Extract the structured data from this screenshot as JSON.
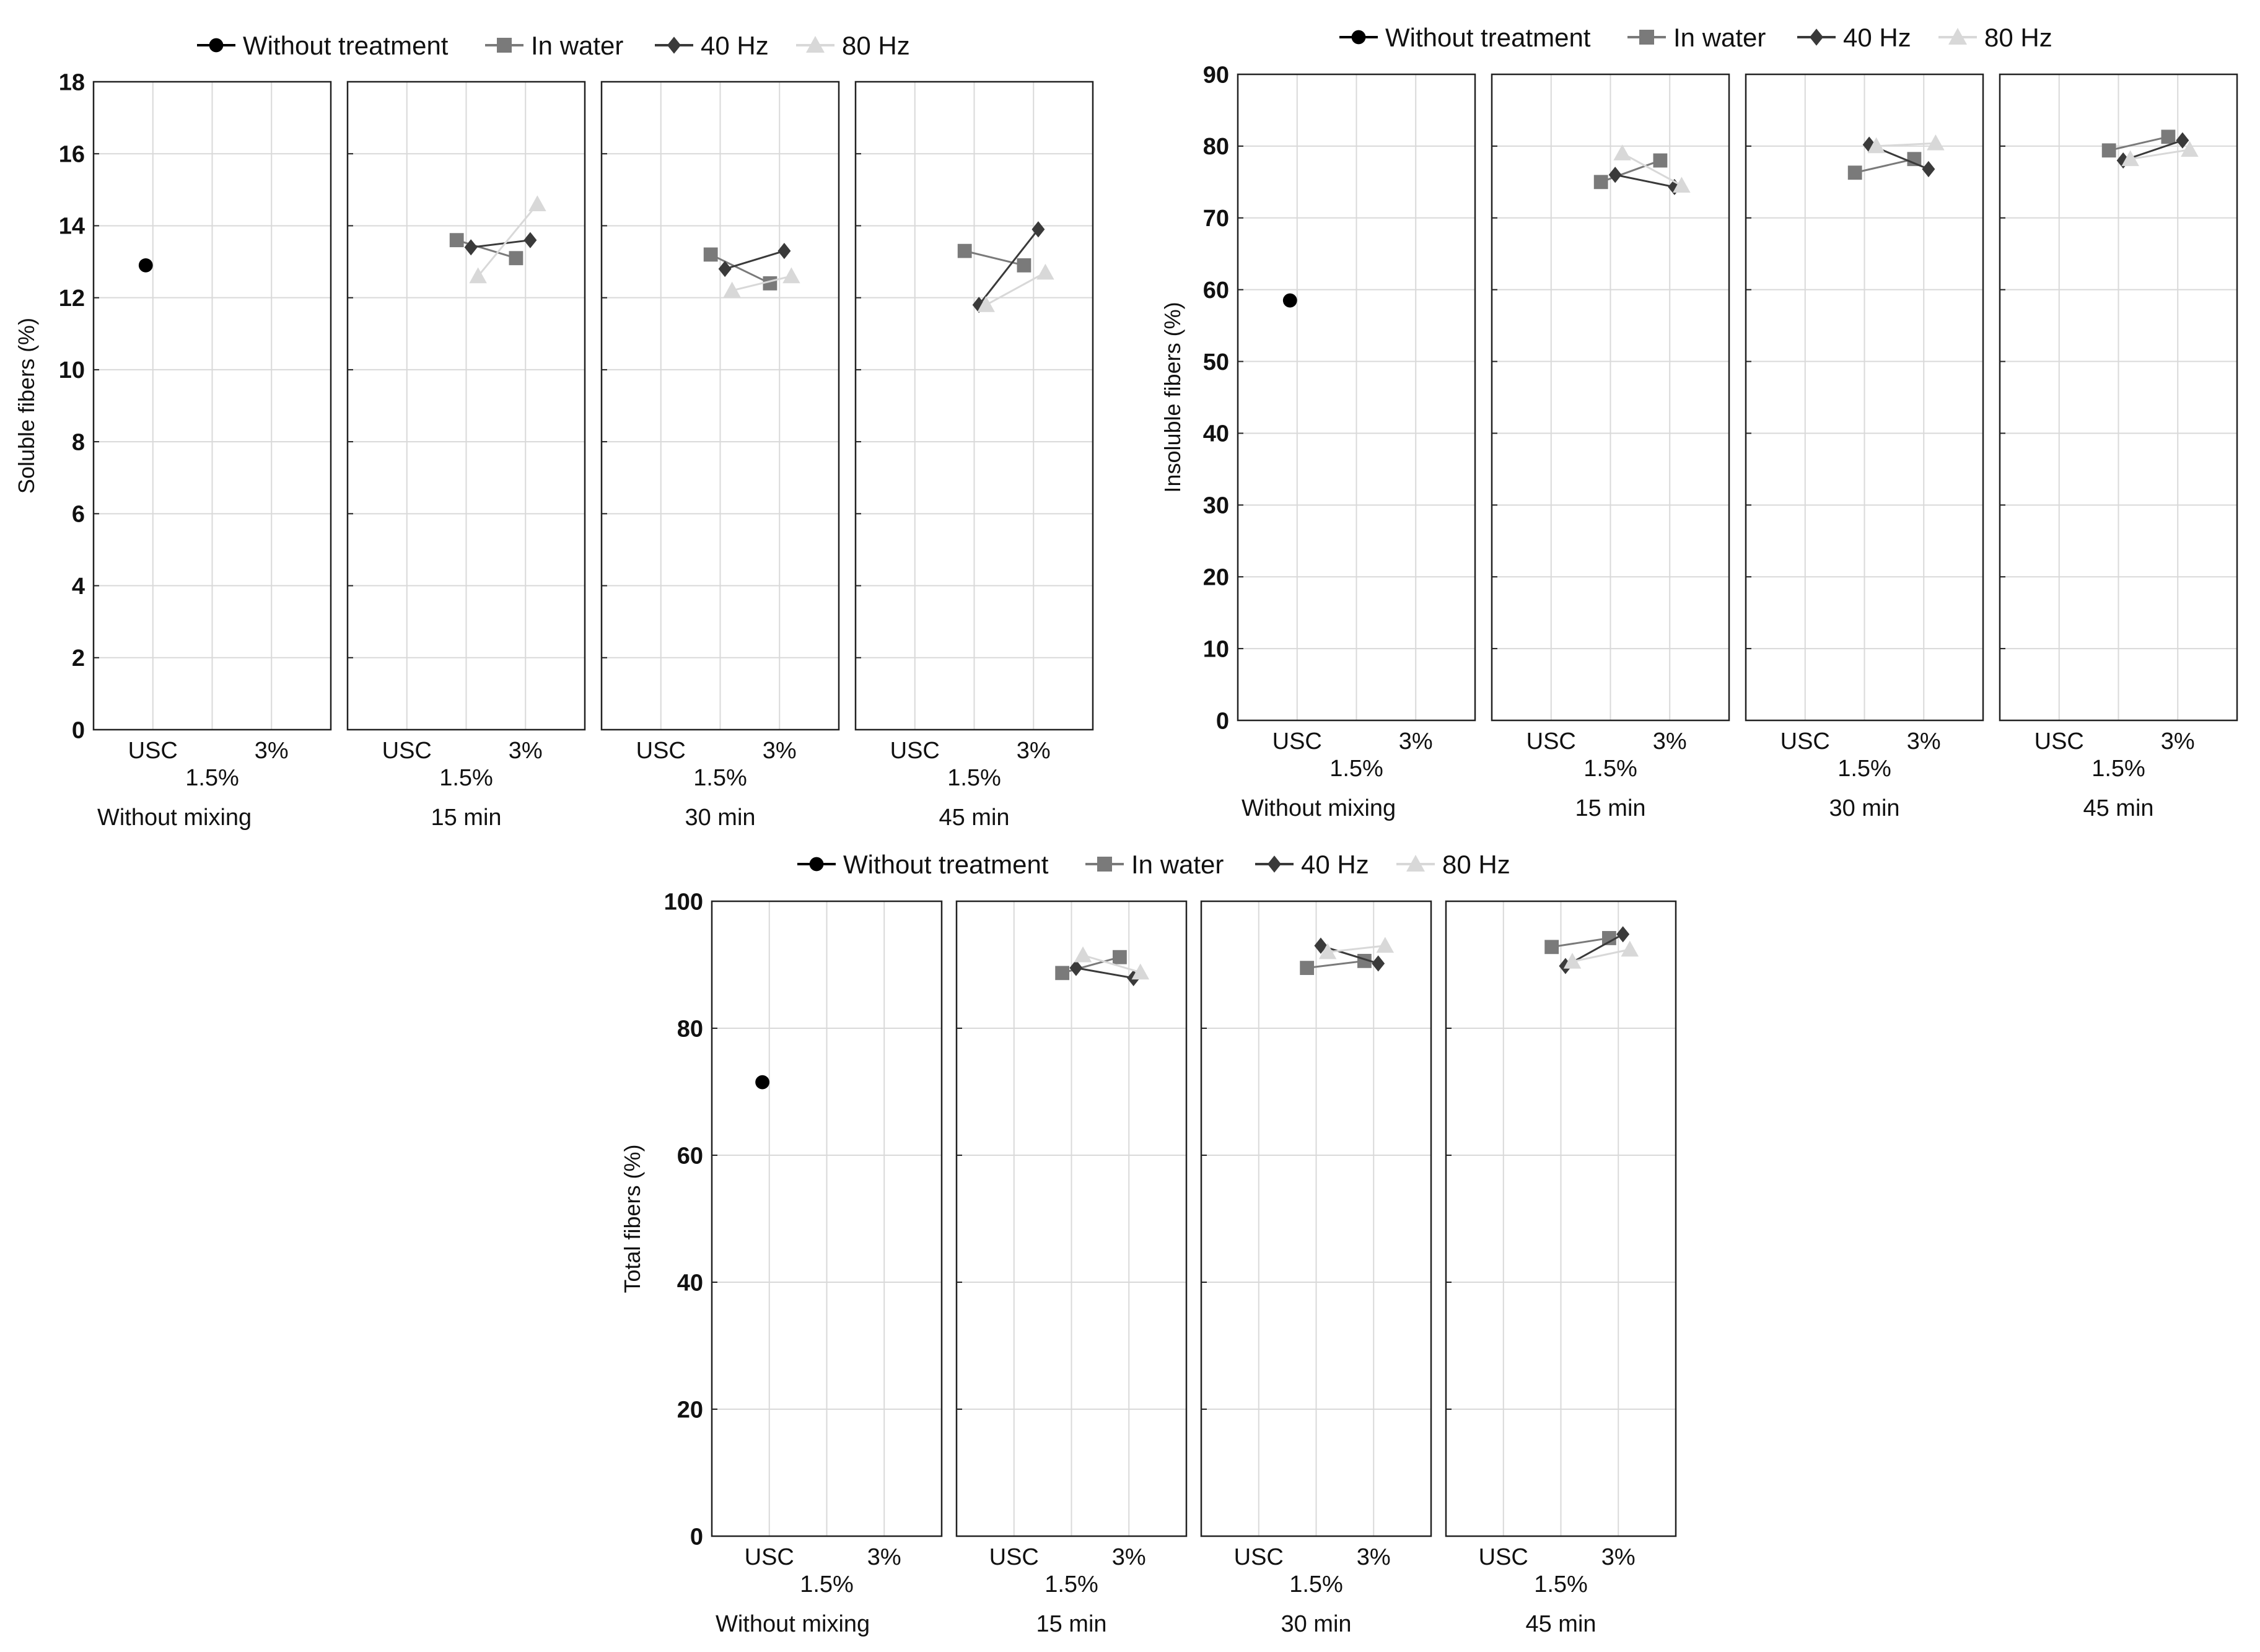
{
  "colors": {
    "without_treatment": "#000000",
    "in_water": "#7a7a7a",
    "hz40": "#3a3a3a",
    "hz80": "#d8d8d8",
    "grid": "#d9d9d9",
    "frame": "#222222"
  },
  "legend": [
    {
      "name": "Without treatment",
      "marker": "circle",
      "color": "#000000"
    },
    {
      "name": "In water",
      "marker": "square",
      "color": "#7a7a7a"
    },
    {
      "name": "40 Hz",
      "marker": "diamond",
      "color": "#3a3a3a"
    },
    {
      "name": "80 Hz",
      "marker": "triangle",
      "color": "#d8d8d8"
    }
  ],
  "chart_data": [
    {
      "type": "line",
      "id": "soluble",
      "ylabel": "Soluble fibers (%)",
      "ylim": [
        0,
        18
      ],
      "yticks": [
        0,
        2,
        4,
        6,
        8,
        10,
        12,
        14,
        16,
        18
      ],
      "x_positions": [
        "USC",
        "1.5%",
        "3%"
      ],
      "panels": [
        {
          "label": "Without mixing",
          "without_treatment": {
            "x": "USC",
            "y": 12.9
          }
        },
        {
          "label": "15 min",
          "series": [
            {
              "name": "In water",
              "values": [
                13.6,
                13.1
              ]
            },
            {
              "name": "40 Hz",
              "values": [
                13.4,
                13.6
              ]
            },
            {
              "name": "80 Hz",
              "values": [
                12.6,
                14.6
              ]
            }
          ]
        },
        {
          "label": "30 min",
          "series": [
            {
              "name": "In water",
              "values": [
                13.2,
                12.4
              ]
            },
            {
              "name": "40 Hz",
              "values": [
                12.8,
                13.3
              ]
            },
            {
              "name": "80 Hz",
              "values": [
                12.2,
                12.6
              ]
            }
          ]
        },
        {
          "label": "45 min",
          "series": [
            {
              "name": "In water",
              "values": [
                13.3,
                12.9
              ]
            },
            {
              "name": "40 Hz",
              "values": [
                11.8,
                13.9
              ]
            },
            {
              "name": "80 Hz",
              "values": [
                11.8,
                12.7
              ]
            }
          ]
        }
      ]
    },
    {
      "type": "line",
      "id": "insoluble",
      "ylabel": "Insoluble fibers (%)",
      "ylim": [
        0,
        90
      ],
      "yticks": [
        0,
        10,
        20,
        30,
        40,
        50,
        60,
        70,
        80,
        90
      ],
      "x_positions": [
        "USC",
        "1.5%",
        "3%"
      ],
      "panels": [
        {
          "label": "Without mixing",
          "without_treatment": {
            "x": "USC",
            "y": 58.5
          }
        },
        {
          "label": "15 min",
          "series": [
            {
              "name": "In water",
              "values": [
                75.0,
                78.0
              ]
            },
            {
              "name": "40 Hz",
              "values": [
                76.0,
                74.3
              ]
            },
            {
              "name": "80 Hz",
              "values": [
                79.0,
                74.5
              ]
            }
          ]
        },
        {
          "label": "30 min",
          "series": [
            {
              "name": "In water",
              "values": [
                76.3,
                78.2
              ]
            },
            {
              "name": "40 Hz",
              "values": [
                80.2,
                76.8
              ]
            },
            {
              "name": "80 Hz",
              "values": [
                80.0,
                80.4
              ]
            }
          ]
        },
        {
          "label": "45 min",
          "series": [
            {
              "name": "In water",
              "values": [
                79.4,
                81.3
              ]
            },
            {
              "name": "40 Hz",
              "values": [
                78.0,
                80.8
              ]
            },
            {
              "name": "80 Hz",
              "values": [
                78.2,
                79.5
              ]
            }
          ]
        }
      ]
    },
    {
      "type": "line",
      "id": "total",
      "ylabel": "Total fibers (%)",
      "ylim": [
        0,
        100
      ],
      "yticks": [
        0,
        20,
        40,
        60,
        80,
        100
      ],
      "x_positions": [
        "USC",
        "1.5%",
        "3%"
      ],
      "panels": [
        {
          "label": "Without mixing",
          "without_treatment": {
            "x": "USC",
            "y": 71.5
          }
        },
        {
          "label": "15 min",
          "series": [
            {
              "name": "In water",
              "values": [
                88.7,
                91.2
              ]
            },
            {
              "name": "40 Hz",
              "values": [
                89.5,
                87.9
              ]
            },
            {
              "name": "80 Hz",
              "values": [
                91.5,
                88.8
              ]
            }
          ]
        },
        {
          "label": "30 min",
          "series": [
            {
              "name": "In water",
              "values": [
                89.5,
                90.6
              ]
            },
            {
              "name": "40 Hz",
              "values": [
                93.0,
                90.2
              ]
            },
            {
              "name": "80 Hz",
              "values": [
                92.0,
                93.0
              ]
            }
          ]
        },
        {
          "label": "45 min",
          "series": [
            {
              "name": "In water",
              "values": [
                92.8,
                94.2
              ]
            },
            {
              "name": "40 Hz",
              "values": [
                89.8,
                94.8
              ]
            },
            {
              "name": "80 Hz",
              "values": [
                90.5,
                92.4
              ]
            }
          ]
        }
      ]
    }
  ]
}
